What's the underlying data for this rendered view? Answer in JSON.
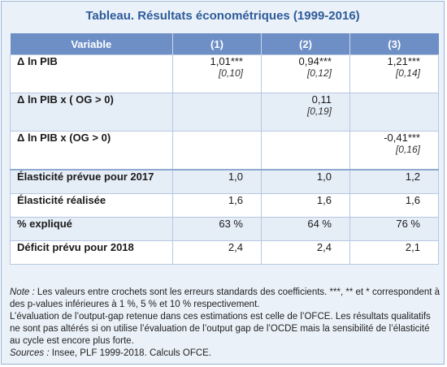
{
  "title": "Tableau. Résultats économétriques (1999-2016)",
  "columns": [
    "Variable",
    "(1)",
    "(2)",
    "(3)"
  ],
  "coef_rows": [
    {
      "label": "Δ ln PIB",
      "cells": [
        {
          "value": "1,01***",
          "se": "[0,10]"
        },
        {
          "value": "0,94***",
          "se": "[0,12]"
        },
        {
          "value": "1,21***",
          "se": "[0,14]"
        }
      ]
    },
    {
      "label": "Δ ln PIB x ( OG > 0)",
      "cells": [
        {
          "value": "",
          "se": ""
        },
        {
          "value": "0,11",
          "se": "[0,19]"
        },
        {
          "value": "",
          "se": ""
        }
      ]
    },
    {
      "label": "Δ ln PIB x (OG > 0)",
      "cells": [
        {
          "value": "",
          "se": ""
        },
        {
          "value": "",
          "se": ""
        },
        {
          "value": "-0,41***",
          "se": "[0,16]"
        }
      ]
    }
  ],
  "summary_rows": [
    {
      "label": "Élasticité prévue pour 2017",
      "values": [
        "1,0",
        "1,0",
        "1,2"
      ]
    },
    {
      "label": "Élasticité réalisée",
      "values": [
        "1,6",
        "1,6",
        "1,6"
      ]
    },
    {
      "label": "% expliqué",
      "values": [
        "63 %",
        "64 %",
        "76 %"
      ]
    },
    {
      "label": "Déficit prévu pour 2018",
      "values": [
        "2,4",
        "2,4",
        "2,1"
      ]
    }
  ],
  "notes": {
    "note_label": "Note :",
    "note_text": " Les valeurs entre crochets sont les erreurs standards des coefficients. ***, ** et * correspondent à des p-values inférieures à 1 %, 5 % et 10 % respectivement.",
    "paragraph": "L’évaluation de l’output-gap retenue dans ces estimations est celle de l’OFCE. Les résultats qualitatifs ne sont pas altérés si on utilise l’évaluation de l’output gap de l’OCDE mais la sensibilité de l’élasticité au cycle est encore plus forte.",
    "sources_label": "Sources :",
    "sources_text": " Insee, PLF 1999-2018. Calculs OFCE."
  }
}
